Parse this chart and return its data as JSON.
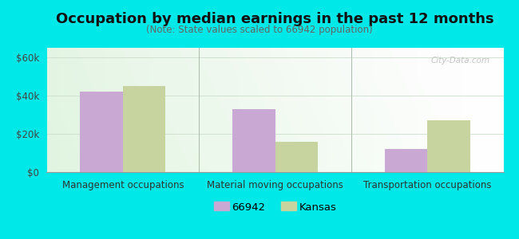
{
  "title": "Occupation by median earnings in the past 12 months",
  "subtitle": "(Note: State values scaled to 66942 population)",
  "categories": [
    "Management occupations",
    "Material moving occupations",
    "Transportation occupations"
  ],
  "series": {
    "66942": [
      42000,
      33000,
      12000
    ],
    "Kansas": [
      45000,
      16000,
      27000
    ]
  },
  "bar_colors": {
    "66942": "#c9a8d4",
    "Kansas": "#c8d4a0"
  },
  "ylim": [
    0,
    65000
  ],
  "yticks": [
    0,
    20000,
    40000,
    60000
  ],
  "ytick_labels": [
    "$0",
    "$20k",
    "$40k",
    "$60k"
  ],
  "background_color": "#00e8e8",
  "bar_width": 0.28,
  "title_fontsize": 13,
  "subtitle_fontsize": 8.5,
  "legend_labels": [
    "66942",
    "Kansas"
  ],
  "watermark": "City-Data.com"
}
